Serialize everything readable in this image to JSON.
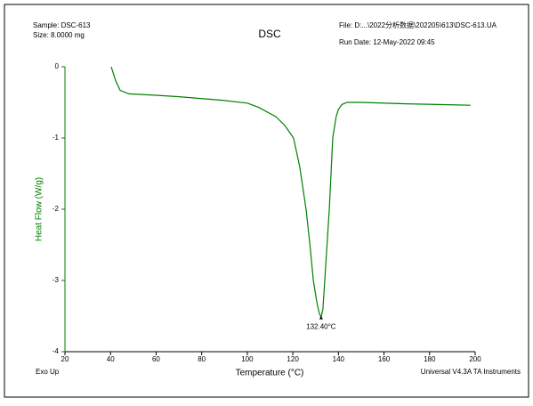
{
  "chart_data": {
    "type": "line",
    "title": "DSC",
    "sample": "Sample: DSC-613",
    "size": "Size:  8.0000 mg",
    "file": "File: D:...\\2022分析数据\\202205\\613\\DSC-613.UA",
    "run_date": "Run Date: 12-May-2022 09:45",
    "corner_left": "Exo Up",
    "corner_right": "Universal V4.3A TA Instruments",
    "x_label": "Temperature (°C)",
    "y_label": "Heat Flow (W/g)",
    "xlim": [
      20,
      200
    ],
    "ylim": [
      -4,
      0
    ],
    "xticks": [
      20,
      40,
      60,
      80,
      100,
      120,
      140,
      160,
      180,
      200
    ],
    "yticks": [
      0,
      -1,
      -2,
      -3,
      -4
    ],
    "x": [
      40.3,
      42.3,
      44.2,
      48,
      60,
      70,
      89,
      100,
      105,
      112.5,
      116.4,
      120.3,
      123,
      125.8,
      127.5,
      129,
      130.5,
      131.5,
      132.4,
      133.2,
      134,
      135,
      136,
      137.5,
      139,
      140,
      141.5,
      143.8,
      150,
      170,
      198
    ],
    "series": [
      {
        "name": "Heat Flow",
        "color": "#008000",
        "values": [
          0,
          -0.2,
          -0.33,
          -0.38,
          -0.4,
          -0.42,
          -0.47,
          -0.51,
          -0.57,
          -0.7,
          -0.82,
          -1.0,
          -1.4,
          -2.0,
          -2.5,
          -3.0,
          -3.3,
          -3.45,
          -3.52,
          -3.4,
          -3.0,
          -2.5,
          -2.0,
          -1.0,
          -0.7,
          -0.6,
          -0.53,
          -0.5,
          -0.5,
          -0.52,
          -0.54
        ]
      }
    ],
    "annotations": [
      {
        "text": "132.40°C",
        "x": 132.4,
        "y": -3.52
      }
    ]
  }
}
